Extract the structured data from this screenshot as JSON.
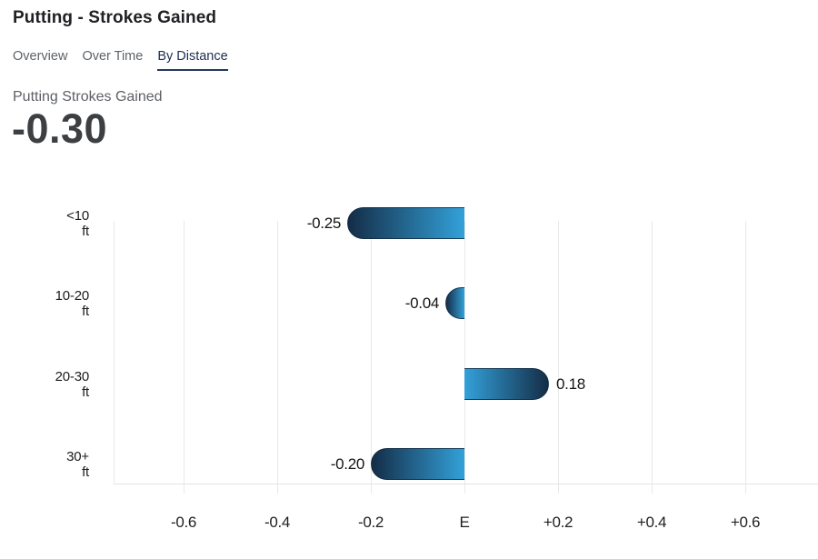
{
  "header": {
    "title": "Putting - Strokes Gained"
  },
  "tabs": [
    {
      "label": "Overview",
      "active": false
    },
    {
      "label": "Over Time",
      "active": false
    },
    {
      "label": "By Distance",
      "active": true
    }
  ],
  "stat": {
    "label": "Putting Strokes Gained",
    "value": "-0.30"
  },
  "colors": {
    "active_tab": "#1c2e52",
    "tab_underline": "#24385e",
    "muted_text": "#5d6065",
    "stat_text": "#3c4043",
    "grid": "#e9e9e9",
    "bar_dark": "#142d47",
    "bar_light": "#33a1d9"
  },
  "chart_data": {
    "type": "bar",
    "orientation": "horizontal",
    "title": "Putting Strokes Gained by distance",
    "categories": [
      "<10 ft",
      "10-20 ft",
      "20-30 ft",
      "30+ ft"
    ],
    "category_lines": [
      [
        "<10",
        "ft"
      ],
      [
        "10-20",
        "ft"
      ],
      [
        "20-30",
        "ft"
      ],
      [
        "30+",
        "ft"
      ]
    ],
    "values": [
      -0.25,
      -0.04,
      0.18,
      -0.2
    ],
    "value_labels": [
      "-0.25",
      "-0.04",
      "0.18",
      "-0.20"
    ],
    "xlim": [
      -0.75,
      0.75
    ],
    "ticks": [
      {
        "value": -0.6,
        "label": "-0.6"
      },
      {
        "value": -0.4,
        "label": "-0.4"
      },
      {
        "value": -0.2,
        "label": "-0.2"
      },
      {
        "value": 0,
        "label": "E"
      },
      {
        "value": 0.2,
        "label": "+0.2"
      },
      {
        "value": 0.4,
        "label": "+0.4"
      },
      {
        "value": 0.6,
        "label": "+0.6"
      }
    ],
    "grid": true,
    "legend": false,
    "bar_gradient": [
      "#142d47",
      "#33a1d9"
    ]
  }
}
